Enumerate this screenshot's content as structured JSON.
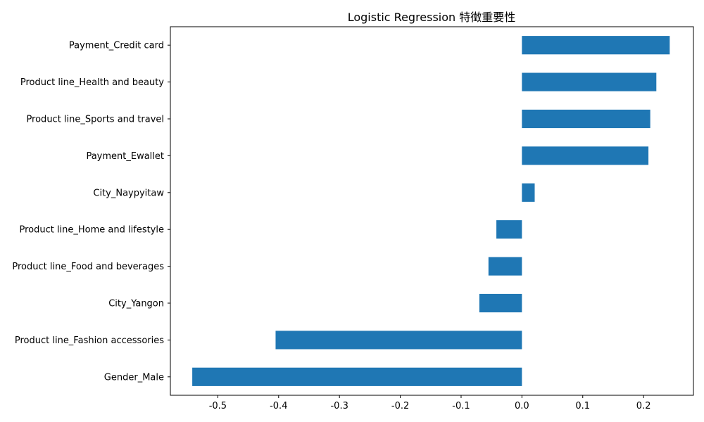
{
  "chart_data": {
    "type": "bar",
    "orientation": "horizontal",
    "title": "Logistic Regression 特徵重要性",
    "xlabel": "",
    "ylabel": "",
    "categories": [
      "Payment_Credit card",
      "Product line_Health and beauty",
      "Product line_Sports and travel",
      "Payment_Ewallet",
      "City_Naypyitaw",
      "Product line_Home and lifestyle",
      "Product line_Food and beverages",
      "City_Yangon",
      "Product line_Fashion accessories",
      "Gender_Male"
    ],
    "values": [
      0.243,
      0.221,
      0.211,
      0.208,
      0.021,
      -0.042,
      -0.055,
      -0.07,
      -0.405,
      -0.542
    ],
    "xlim": [
      -0.578,
      0.282
    ],
    "xticks": [
      -0.5,
      -0.4,
      -0.3,
      -0.2,
      -0.1,
      0.0,
      0.1,
      0.2
    ],
    "xtick_labels": [
      "-0.5",
      "-0.4",
      "-0.3",
      "-0.2",
      "-0.1",
      "0.0",
      "0.1",
      "0.2"
    ],
    "grid": false,
    "legend": "none",
    "colors": {
      "bar": "#1f77b4",
      "axis": "#000000",
      "background": "#ffffff"
    }
  }
}
